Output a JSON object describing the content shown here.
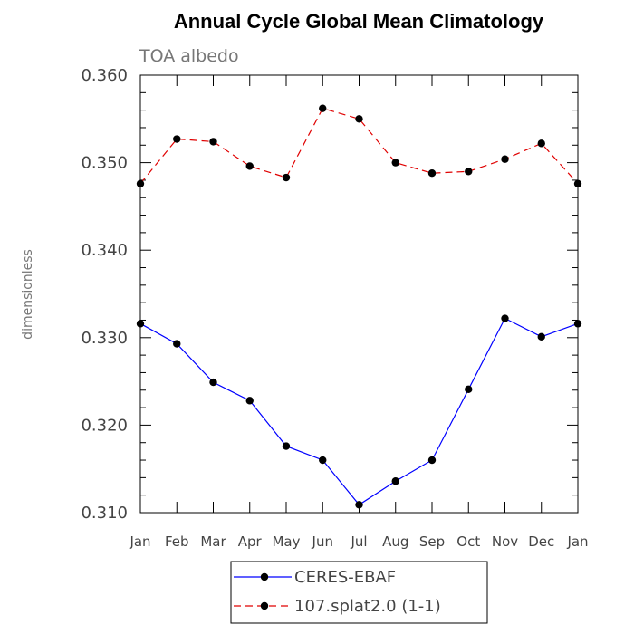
{
  "chart_data": {
    "type": "line",
    "title": "Annual Cycle Global Mean Climatology",
    "subtitle": "TOA albedo",
    "ylabel": "dimensionless",
    "xlabel": "",
    "categories": [
      "Jan",
      "Feb",
      "Mar",
      "Apr",
      "May",
      "Jun",
      "Jul",
      "Aug",
      "Sep",
      "Oct",
      "Nov",
      "Dec",
      "Jan"
    ],
    "ylim": [
      0.31,
      0.36
    ],
    "yticks": [
      {
        "value": 0.31,
        "label": "0.310"
      },
      {
        "value": 0.32,
        "label": "0.320"
      },
      {
        "value": 0.33,
        "label": "0.330"
      },
      {
        "value": 0.34,
        "label": "0.340"
      },
      {
        "value": 0.35,
        "label": "0.350"
      },
      {
        "value": 0.36,
        "label": "0.360"
      }
    ],
    "legend_position": "bottom",
    "grid": false,
    "series": [
      {
        "name": "CERES-EBAF",
        "color": "#0000ff",
        "dash": "solid",
        "values": [
          0.3316,
          0.3293,
          0.3249,
          0.3228,
          0.3176,
          0.316,
          0.3109,
          0.3136,
          0.316,
          0.3241,
          0.3322,
          0.3301,
          0.3316
        ]
      },
      {
        "name": "107.splat2.0 (1-1)",
        "color": "#e00000",
        "dash": "dashed",
        "values": [
          0.3476,
          0.3527,
          0.3524,
          0.3496,
          0.3483,
          0.3562,
          0.355,
          0.35,
          0.3488,
          0.349,
          0.3504,
          0.3522,
          0.3476
        ]
      }
    ]
  }
}
